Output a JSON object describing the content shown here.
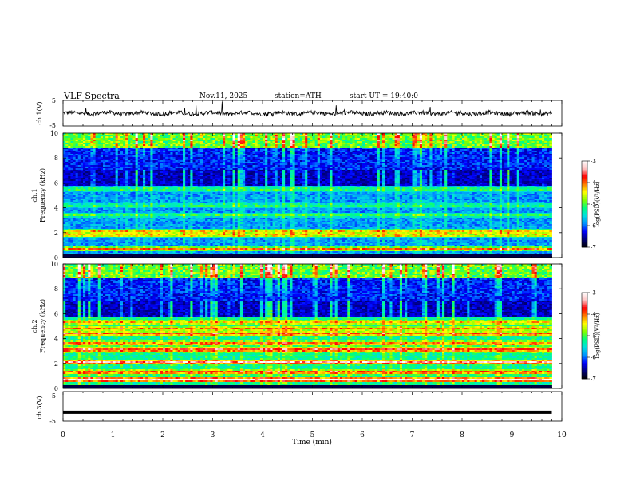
{
  "header": {
    "title": "VLF  Spectra",
    "date": "Nov.11, 2025",
    "station": "station=ATH",
    "start": "start  UT  =    19:40:0"
  },
  "colors": {
    "trace": "#000000",
    "colormap": [
      "#000000",
      "#00007a",
      "#0000ff",
      "#0090ff",
      "#00e0e0",
      "#00ff80",
      "#80ff00",
      "#ffff00",
      "#ff8000",
      "#ff0000",
      "#ffc0c0",
      "#ffffff"
    ]
  },
  "chart_data": [
    {
      "type": "line",
      "name": "ch1-waveform",
      "ylabel": "ch.1(V)",
      "ylim": [
        -5,
        5
      ],
      "yticks": [
        "5",
        "-5"
      ],
      "xlim": [
        0,
        10
      ],
      "x_extent_min": 9.8,
      "description_values": {
        "mean": 0,
        "typical_amplitude": 1
      }
    },
    {
      "type": "heatmap",
      "name": "ch1-spectrogram",
      "ylabel": "ch.1\nFrequency  (kHz)",
      "ylim": [
        0,
        10
      ],
      "yticks": [
        "0",
        "2",
        "4",
        "6",
        "8",
        "10"
      ],
      "xlim": [
        0,
        10
      ],
      "x_extent_min": 9.8,
      "colorbar": {
        "label": "log(PSD)(V²/Hz)",
        "ticks": [
          "-3",
          "-4",
          "-5",
          "-6",
          "-7"
        ],
        "range": [
          -7,
          -3
        ]
      }
    },
    {
      "type": "heatmap",
      "name": "ch2-spectrogram",
      "ylabel": "ch.2\nFrequency  (kHz)",
      "ylim": [
        0,
        10
      ],
      "yticks": [
        "0",
        "2",
        "4",
        "6",
        "8",
        "10"
      ],
      "xlim": [
        0,
        10
      ],
      "x_extent_min": 9.8,
      "colorbar": {
        "label": "log(PSD)(V²/Hz)",
        "ticks": [
          "-3",
          "-4",
          "-5",
          "-6",
          "-7"
        ],
        "range": [
          -7,
          -3
        ]
      }
    },
    {
      "type": "line",
      "name": "ch3-waveform",
      "ylabel": "ch.3(V)",
      "ylim": [
        -5,
        5
      ],
      "yticks": [
        "5",
        "-5"
      ],
      "xlim": [
        0,
        10
      ],
      "x_extent_min": 9.8,
      "level": -2
    }
  ],
  "xaxis": {
    "label": "Time  (min)",
    "ticks": [
      "0",
      "1",
      "2",
      "3",
      "4",
      "5",
      "6",
      "7",
      "8",
      "9",
      "10"
    ]
  }
}
